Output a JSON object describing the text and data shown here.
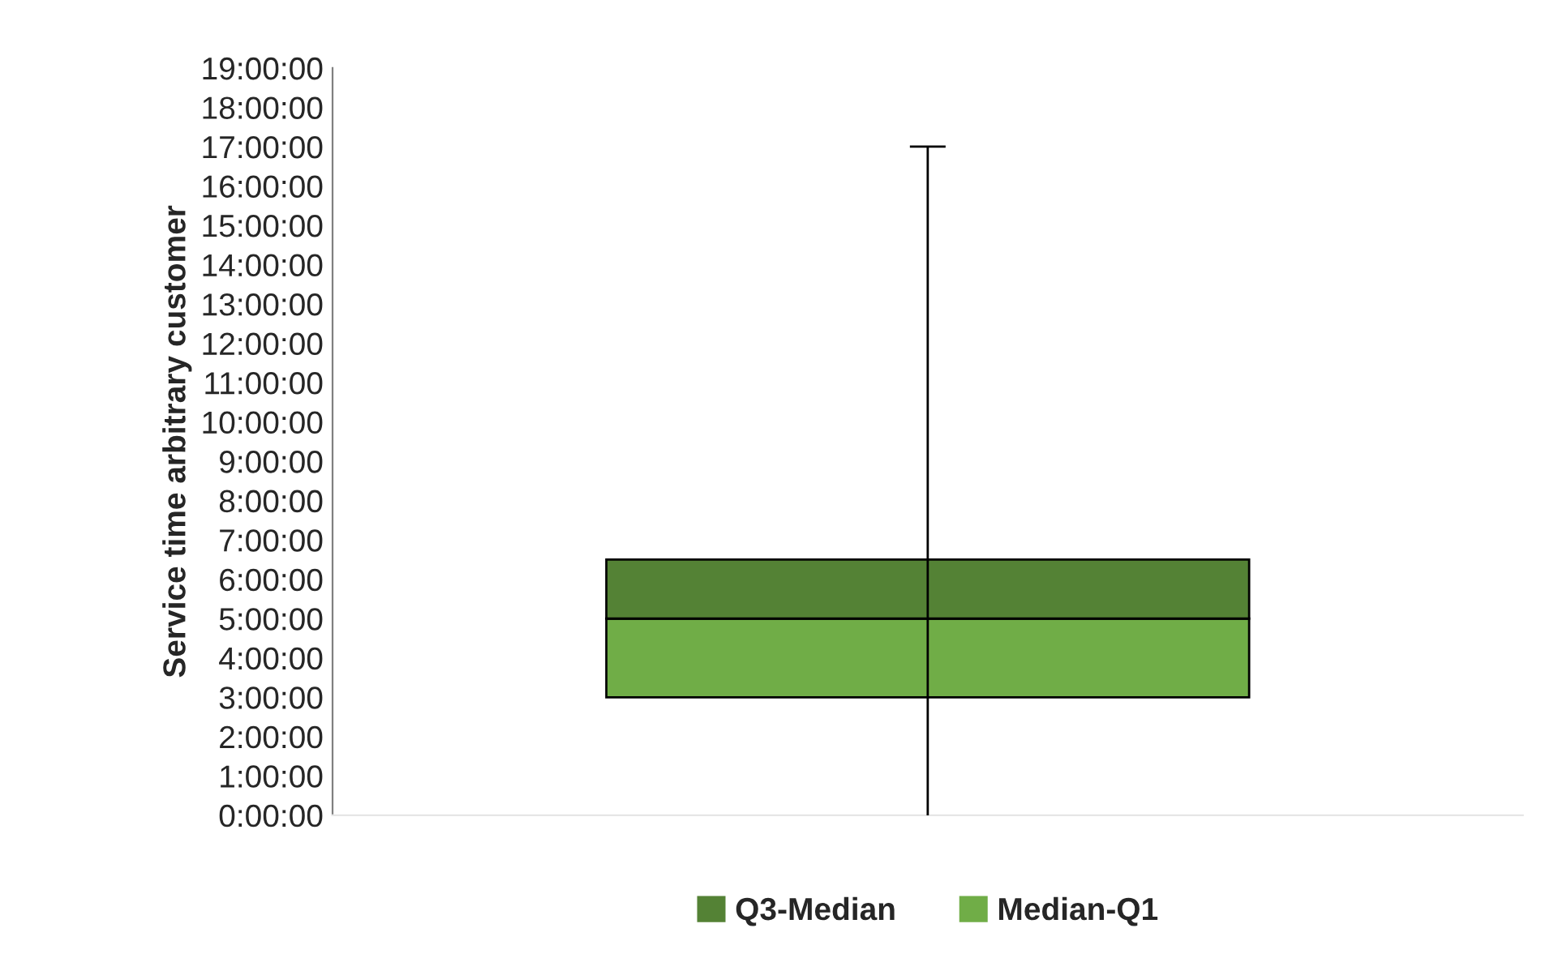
{
  "chart_data": {
    "type": "bar",
    "ylabel": "Service time arbitrary customer",
    "categories": [
      null
    ],
    "series": [
      {
        "name": "Median-Q1",
        "color": "#70ad47",
        "values": [
          2
        ],
        "base": [
          3
        ]
      },
      {
        "name": "Q3-Median",
        "color": "#548235",
        "values": [
          1.5
        ],
        "base": [
          5
        ],
        "errors": [
          [
            0,
            17
          ]
        ]
      }
    ],
    "ylim": [
      0,
      19
    ],
    "yticks": [
      {
        "value": 0,
        "label": "0:00:00"
      },
      {
        "value": 1,
        "label": "1:00:00"
      },
      {
        "value": 2,
        "label": "2:00:00"
      },
      {
        "value": 3,
        "label": "3:00:00"
      },
      {
        "value": 4,
        "label": "4:00:00"
      },
      {
        "value": 5,
        "label": "5:00:00"
      },
      {
        "value": 6,
        "label": "6:00:00"
      },
      {
        "value": 7,
        "label": "7:00:00"
      },
      {
        "value": 8,
        "label": "8:00:00"
      },
      {
        "value": 9,
        "label": "9:00:00"
      },
      {
        "value": 10,
        "label": "10:00:00"
      },
      {
        "value": 11,
        "label": "11:00:00"
      },
      {
        "value": 12,
        "label": "12:00:00"
      },
      {
        "value": 13,
        "label": "13:00:00"
      },
      {
        "value": 14,
        "label": "14:00:00"
      },
      {
        "value": 15,
        "label": "15:00:00"
      },
      {
        "value": 16,
        "label": "16:00:00"
      },
      {
        "value": 17,
        "label": "17:00:00"
      },
      {
        "value": 18,
        "label": "18:00:00"
      },
      {
        "value": 19,
        "label": "19:00:00"
      }
    ],
    "grid": false,
    "legend": "bottom"
  }
}
